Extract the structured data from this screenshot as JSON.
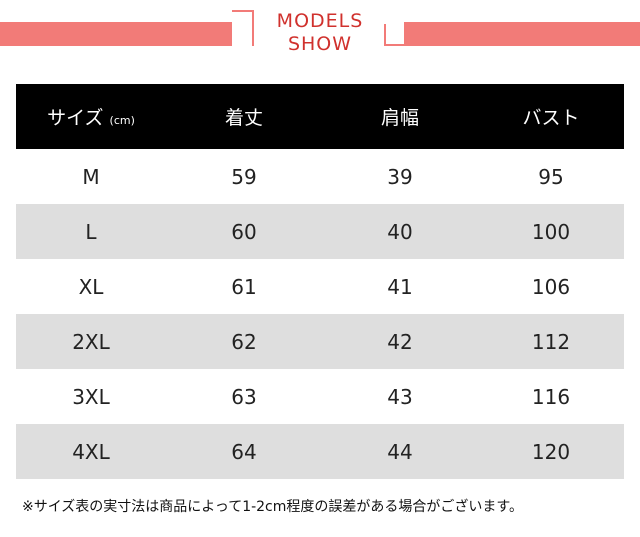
{
  "banner": {
    "title_line1": "MODELS",
    "title_line2": "SHOW"
  },
  "table": {
    "headers": {
      "size": "サイズ",
      "size_unit": "(cm)",
      "length": "着丈",
      "shoulder": "肩幅",
      "bust": "バスト"
    },
    "rows": [
      {
        "size": "M",
        "length": "59",
        "shoulder": "39",
        "bust": "95"
      },
      {
        "size": "L",
        "length": "60",
        "shoulder": "40",
        "bust": "100"
      },
      {
        "size": "XL",
        "length": "61",
        "shoulder": "41",
        "bust": "106"
      },
      {
        "size": "2XL",
        "length": "62",
        "shoulder": "42",
        "bust": "112"
      },
      {
        "size": "3XL",
        "length": "63",
        "shoulder": "43",
        "bust": "116"
      },
      {
        "size": "4XL",
        "length": "64",
        "shoulder": "44",
        "bust": "120"
      }
    ]
  },
  "footnote": "※サイズ表の実寸法は商品によって1-2cm程度の誤差がある場合がございます。",
  "colors": {
    "banner": "#f27b78",
    "title": "#d0312d",
    "header_bg": "#000000",
    "row_shade": "#dedede"
  }
}
